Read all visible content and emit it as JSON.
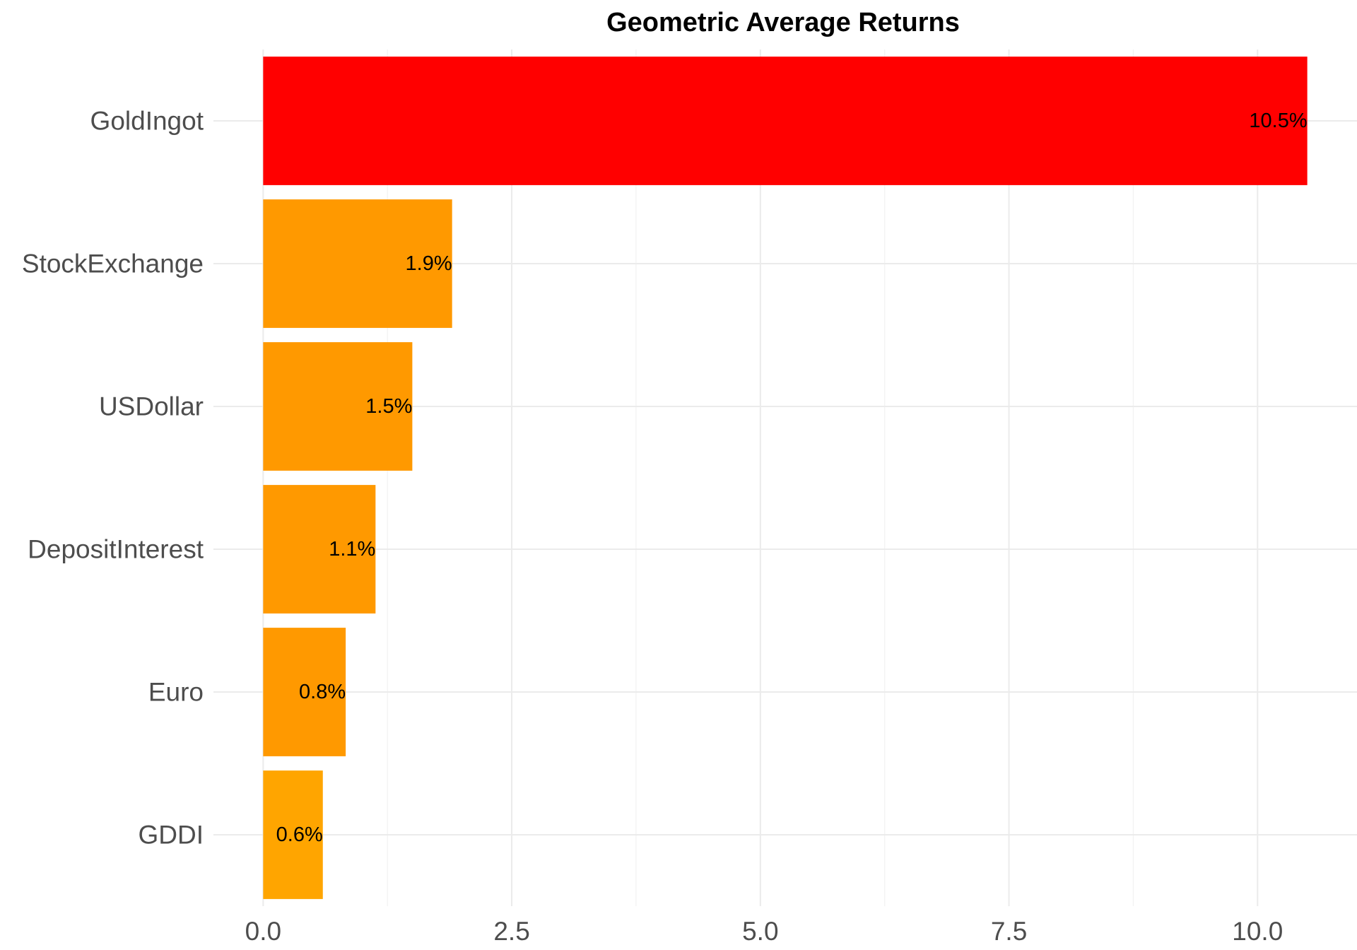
{
  "chart_data": {
    "type": "bar",
    "orientation": "horizontal",
    "title": "Geometric Average Returns",
    "xlabel": "",
    "ylabel": "",
    "categories": [
      "GoldIngot",
      "StockExchange",
      "USDollar",
      "DepositInterest",
      "Euro",
      "GDDI"
    ],
    "values": [
      10.5,
      1.9,
      1.5,
      1.13,
      0.83,
      0.6
    ],
    "data_labels": [
      "10.5%",
      "1.9%",
      "1.5%",
      "1.1%",
      "0.8%",
      "0.6%"
    ],
    "bar_colors": [
      "#ff0000",
      "#ff9900",
      "#ff9900",
      "#ff9900",
      "#ff9900",
      "#ffa500"
    ],
    "xlim": [
      -0.5,
      11.0
    ],
    "x_ticks": [
      0.0,
      2.5,
      5.0,
      7.5,
      10.0
    ],
    "x_tick_labels": [
      "0.0",
      "2.5",
      "5.0",
      "7.5",
      "10.0"
    ],
    "grid": true,
    "legend": "none"
  }
}
